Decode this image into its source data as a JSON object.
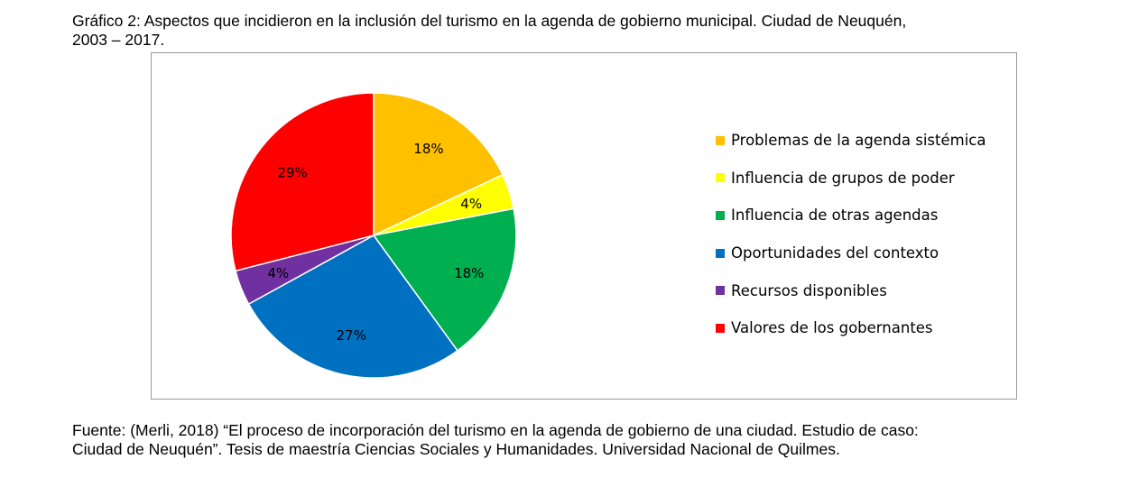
{
  "caption": {
    "title_line1": "Gráfico 2: Aspectos que incidieron en la inclusión del turismo en la agenda de gobierno municipal. Ciudad de Neuquén,",
    "title_line2": "2003 – 2017.",
    "source_line1": "Fuente: (Merli, 2018) “El proceso de incorporación del turismo en la agenda de gobierno de una ciudad. Estudio de caso:",
    "source_line2": "Ciudad de Neuquén”. Tesis de maestría Ciencias Sociales y Humanidades. Universidad Nacional de Quilmes."
  },
  "chart_data": {
    "type": "pie",
    "title": "Gráfico 2: Aspectos que incidieron en la inclusión del turismo en la agenda de gobierno municipal. Ciudad de Neuquén, 2003 – 2017.",
    "legend_position": "right",
    "start_angle": "12 o'clock, clockwise",
    "slices": [
      {
        "label": "Problemas de la agenda sistémica",
        "value": 18,
        "display": "18%",
        "color": "#FFC000"
      },
      {
        "label": "Influencia de grupos de poder",
        "value": 4,
        "display": "4%",
        "color": "#FFFF00"
      },
      {
        "label": "Influencia de otras agendas",
        "value": 18,
        "display": "18%",
        "color": "#00B050"
      },
      {
        "label": "Oportunidades del contexto",
        "value": 27,
        "display": "27%",
        "color": "#0070C0"
      },
      {
        "label": "Recursos disponibles",
        "value": 4,
        "display": "4%",
        "color": "#7030A0"
      },
      {
        "label": "Valores de los gobernantes",
        "value": 29,
        "display": "29%",
        "color": "#FF0000"
      }
    ]
  }
}
